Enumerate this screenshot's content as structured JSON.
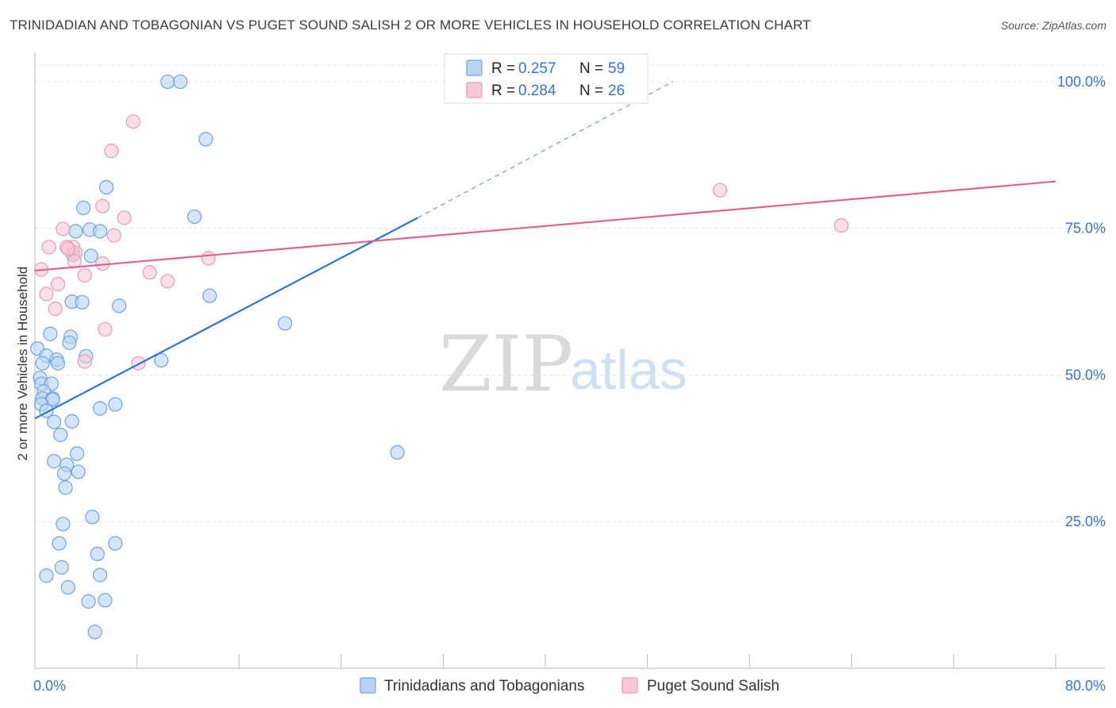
{
  "header": {
    "title": "TRINIDADIAN AND TOBAGONIAN VS PUGET SOUND SALISH 2 OR MORE VEHICLES IN HOUSEHOLD CORRELATION CHART",
    "source": "Source: ZipAtlas.com"
  },
  "watermark": {
    "zip": "ZIP",
    "atlas": "atlas"
  },
  "stats": [
    {
      "r_label": "R = ",
      "r_value": "0.257",
      "n_label": "N = ",
      "n_value": "59"
    },
    {
      "r_label": "R = ",
      "r_value": "0.284",
      "n_label": "N = ",
      "n_value": "26"
    }
  ],
  "chart_data": {
    "type": "scatter",
    "title": "TRINIDADIAN AND TOBAGONIAN VS PUGET SOUND SALISH 2 OR MORE VEHICLES IN HOUSEHOLD CORRELATION CHART",
    "xlabel": "",
    "ylabel": "2 or more Vehicles in Household",
    "xlim": [
      0,
      80
    ],
    "ylim": [
      0,
      105
    ],
    "x_tick_labels": {
      "min": "0.0%",
      "max": "80.0%"
    },
    "y_ticks": [
      {
        "value": 25,
        "label": "25.0%"
      },
      {
        "value": 50,
        "label": "50.0%"
      },
      {
        "value": 75,
        "label": "75.0%"
      },
      {
        "value": 100,
        "label": "100.0%"
      }
    ],
    "legend_position": "bottom",
    "series": [
      {
        "name": "Trinidadians and Tobagonians",
        "color": "#6fa3e0",
        "fill": "#b9d3f3",
        "line_color": "#2f74cc",
        "r": 0.257,
        "n": 59,
        "trend": {
          "x0": 0,
          "y0": 42.6,
          "x1": 30,
          "y1": 76.8,
          "dash_to_x": 50,
          "dash_to_y": 100
        },
        "points": [
          [
            10.4,
            100
          ],
          [
            11.4,
            100
          ],
          [
            13.4,
            90.2
          ],
          [
            5.6,
            82
          ],
          [
            3.8,
            78.5
          ],
          [
            12.5,
            77
          ],
          [
            3.2,
            74.5
          ],
          [
            4.3,
            74.8
          ],
          [
            5.1,
            74.5
          ],
          [
            3.0,
            70.5
          ],
          [
            4.4,
            70.3
          ],
          [
            13.7,
            63.5
          ],
          [
            2.9,
            62.5
          ],
          [
            3.7,
            62.4
          ],
          [
            6.6,
            61.8
          ],
          [
            19.6,
            58.8
          ],
          [
            1.2,
            57
          ],
          [
            2.8,
            56.5
          ],
          [
            2.7,
            55.5
          ],
          [
            0.2,
            54.5
          ],
          [
            0.9,
            53.3
          ],
          [
            1.7,
            52.6
          ],
          [
            0.6,
            52.0
          ],
          [
            1.8,
            52.0
          ],
          [
            4.0,
            53.2
          ],
          [
            9.9,
            52.5
          ],
          [
            0.4,
            49.5
          ],
          [
            0.5,
            48.5
          ],
          [
            1.3,
            48.5
          ],
          [
            0.7,
            47.2
          ],
          [
            0.6,
            46.0
          ],
          [
            1.4,
            46.0
          ],
          [
            1.4,
            45.8
          ],
          [
            0.5,
            45.0
          ],
          [
            6.3,
            45.0
          ],
          [
            5.1,
            44.3
          ],
          [
            0.9,
            43.9
          ],
          [
            1.5,
            42.0
          ],
          [
            2.9,
            42.1
          ],
          [
            2.0,
            39.8
          ],
          [
            28.4,
            36.8
          ],
          [
            3.3,
            36.6
          ],
          [
            1.5,
            35.3
          ],
          [
            2.5,
            34.7
          ],
          [
            3.4,
            33.5
          ],
          [
            2.3,
            33.2
          ],
          [
            2.4,
            30.8
          ],
          [
            4.5,
            25.8
          ],
          [
            2.2,
            24.6
          ],
          [
            6.3,
            21.3
          ],
          [
            1.9,
            21.3
          ],
          [
            4.9,
            19.5
          ],
          [
            2.1,
            17.2
          ],
          [
            0.9,
            15.8
          ],
          [
            5.1,
            15.9
          ],
          [
            2.6,
            13.8
          ],
          [
            4.2,
            11.4
          ],
          [
            5.5,
            11.6
          ],
          [
            4.7,
            6.2
          ]
        ]
      },
      {
        "name": "Puget Sound Salish",
        "color": "#e99ab4",
        "fill": "#f7c8d8",
        "line_color": "#e0628f",
        "r": 0.284,
        "n": 26,
        "trend": {
          "x0": 0,
          "y0": 67.8,
          "x1": 80,
          "y1": 83.0
        },
        "points": [
          [
            7.7,
            93.2
          ],
          [
            6.0,
            88.2
          ],
          [
            53.7,
            81.5
          ],
          [
            5.3,
            78.8
          ],
          [
            7.0,
            76.8
          ],
          [
            2.2,
            74.9
          ],
          [
            63.2,
            75.5
          ],
          [
            6.2,
            73.8
          ],
          [
            1.1,
            71.8
          ],
          [
            3.0,
            71.8
          ],
          [
            2.5,
            71.8
          ],
          [
            3.2,
            70.8
          ],
          [
            13.6,
            69.9
          ],
          [
            3.1,
            69.4
          ],
          [
            5.3,
            69.0
          ],
          [
            0.5,
            68.0
          ],
          [
            9.0,
            67.5
          ],
          [
            3.9,
            67.0
          ],
          [
            10.4,
            66.0
          ],
          [
            1.8,
            65.5
          ],
          [
            0.9,
            63.8
          ],
          [
            1.6,
            61.3
          ],
          [
            5.5,
            57.8
          ],
          [
            8.1,
            52.0
          ],
          [
            3.9,
            52.3
          ],
          [
            2.6,
            71.5
          ]
        ]
      }
    ]
  }
}
